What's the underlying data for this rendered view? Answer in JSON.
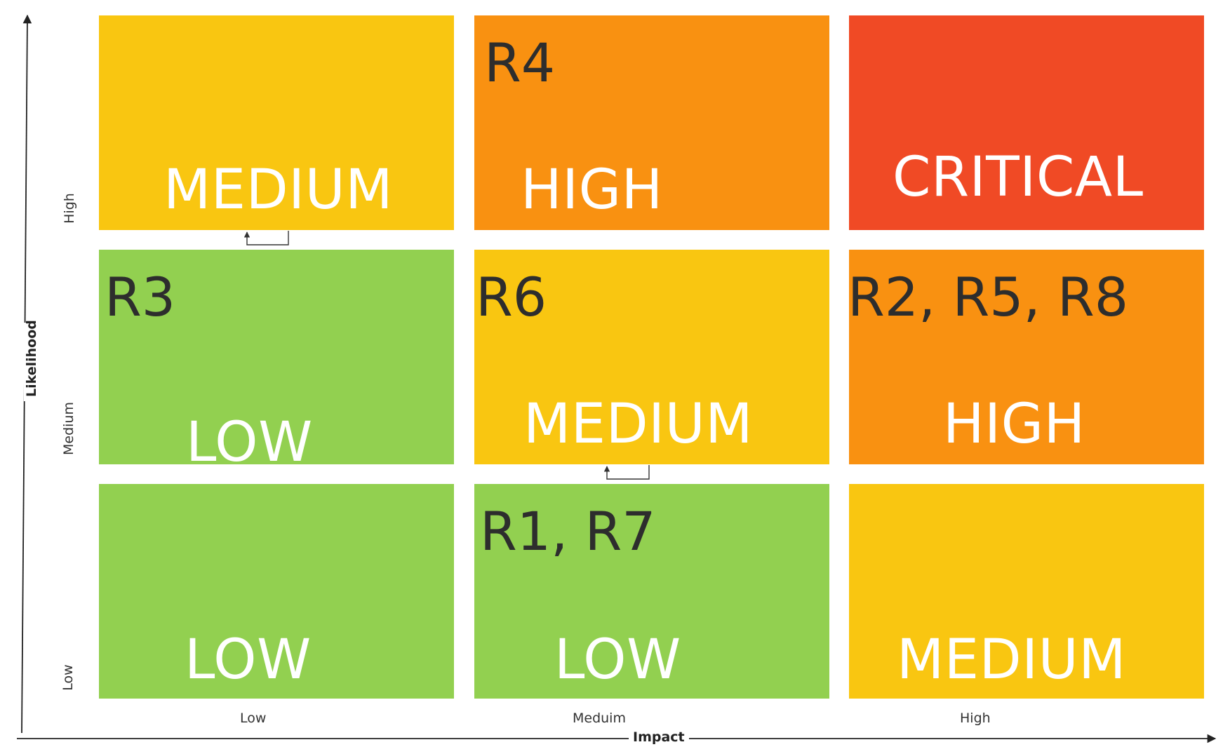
{
  "axes": {
    "x_title": "Impact",
    "y_title": "Likelihood",
    "x_ticks": [
      "Low",
      "Meduim",
      "High"
    ],
    "y_ticks": [
      "High",
      "Medium",
      "Low"
    ]
  },
  "colors": {
    "low": "#92d050",
    "medium": "#f9c611",
    "high": "#f99111",
    "critical": "#f04a25",
    "risk_text": "#2d2d2d",
    "level_text": "#ffffff",
    "axis": "#222222"
  },
  "cells": {
    "r0c0": {
      "level": "MEDIUM",
      "risks": ""
    },
    "r0c1": {
      "level": "HIGH",
      "risks": "R4"
    },
    "r0c2": {
      "level": "CRITICAL",
      "risks": ""
    },
    "r1c0": {
      "level": "LOW",
      "risks": "R3"
    },
    "r1c1": {
      "level": "MEDIUM",
      "risks": "R6"
    },
    "r1c2": {
      "level": "HIGH",
      "risks": "R2, R5, R8"
    },
    "r2c0": {
      "level": "LOW",
      "risks": ""
    },
    "r2c1": {
      "level": "LOW",
      "risks": "R1, R7"
    },
    "r2c2": {
      "level": "MEDIUM",
      "risks": ""
    }
  }
}
